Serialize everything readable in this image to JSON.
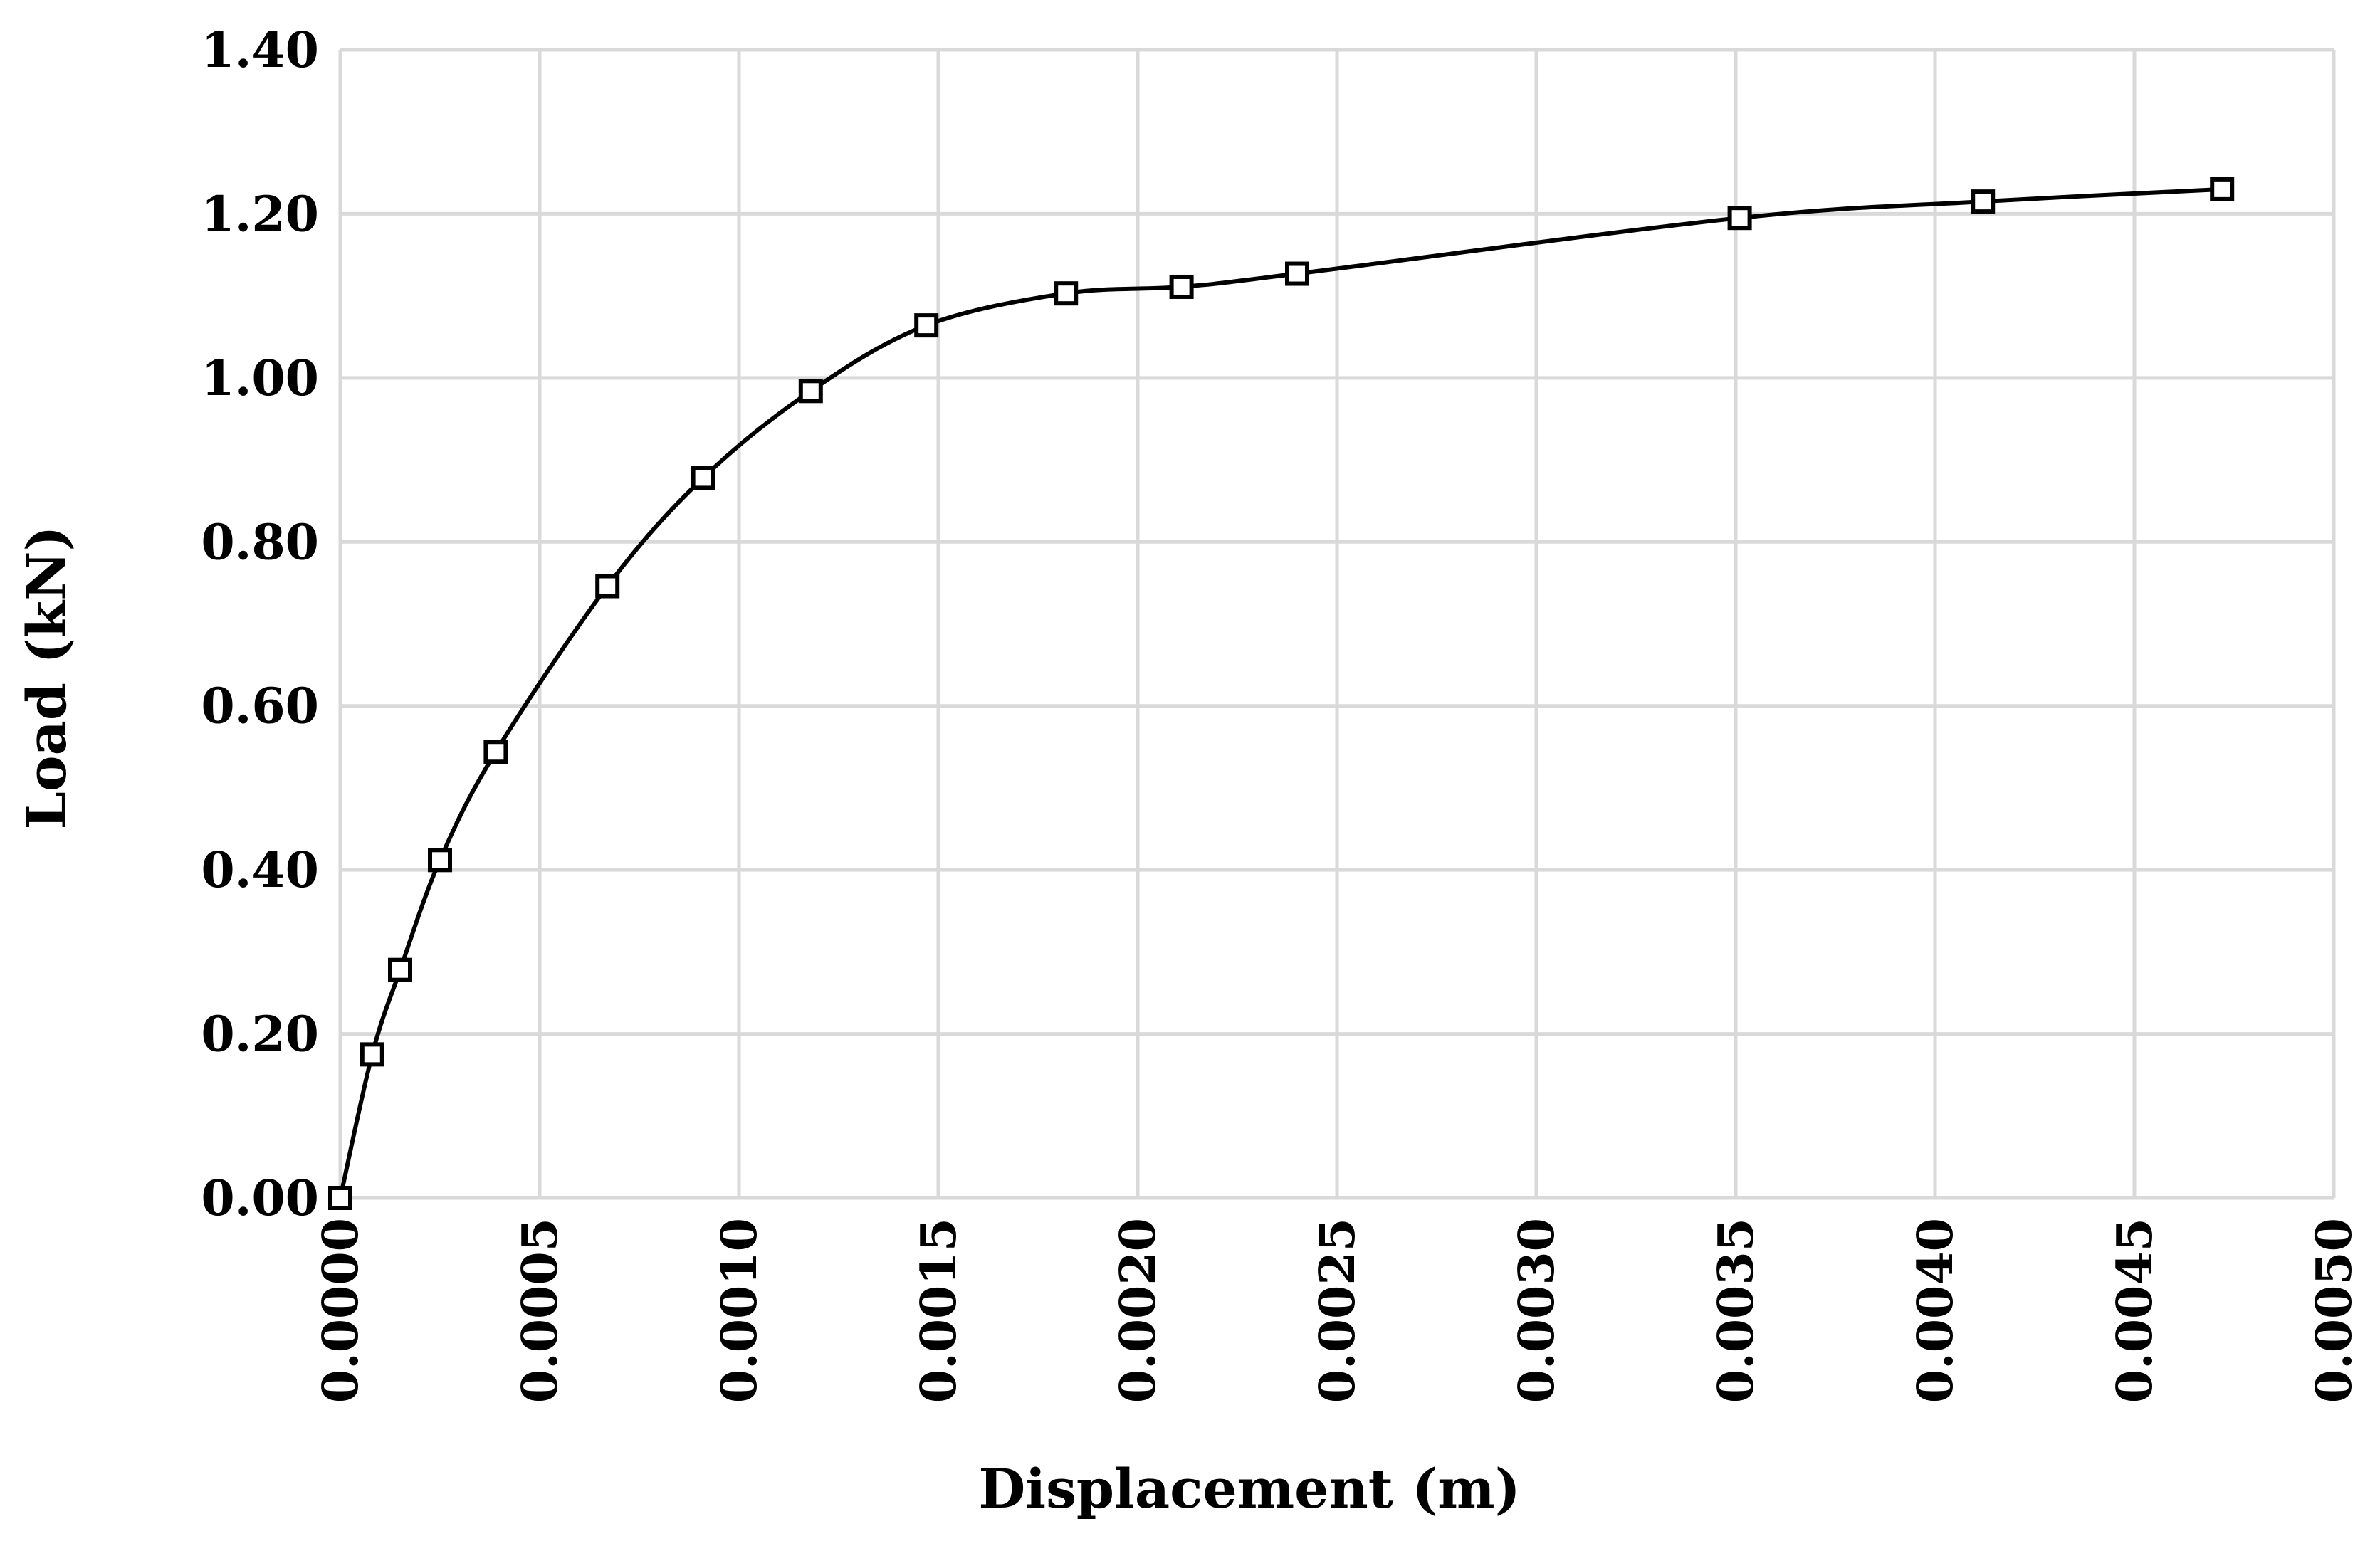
{
  "chart_data": {
    "type": "line",
    "title": "",
    "xlabel": "Displacement (m)",
    "ylabel": "Load (kN)",
    "xlim": [
      0,
      0.005
    ],
    "ylim": [
      0,
      1.4
    ],
    "x_ticks": [
      "0.0000",
      "0.0005",
      "0.0010",
      "0.0015",
      "0.0020",
      "0.0025",
      "0.0030",
      "0.0035",
      "0.0040",
      "0.0045",
      "0.0050"
    ],
    "y_ticks": [
      "0.00",
      "0.20",
      "0.40",
      "0.60",
      "0.80",
      "1.00",
      "1.20",
      "1.40"
    ],
    "grid": true,
    "legend": "none",
    "marker": "square",
    "smooth": true,
    "line_color": "#000000",
    "grid_color": "#d9d9d9",
    "series": [
      {
        "x": [
          0.0,
          8e-05,
          0.00015,
          0.00025,
          0.00039,
          0.00067,
          0.00091,
          0.00118,
          0.00147,
          0.00182,
          0.00211,
          0.0024,
          0.00351,
          0.00412,
          0.00472
        ],
        "y": [
          0.0,
          0.175,
          0.278,
          0.412,
          0.544,
          0.746,
          0.878,
          0.984,
          1.064,
          1.103,
          1.111,
          1.127,
          1.195,
          1.215,
          1.23
        ]
      }
    ]
  }
}
